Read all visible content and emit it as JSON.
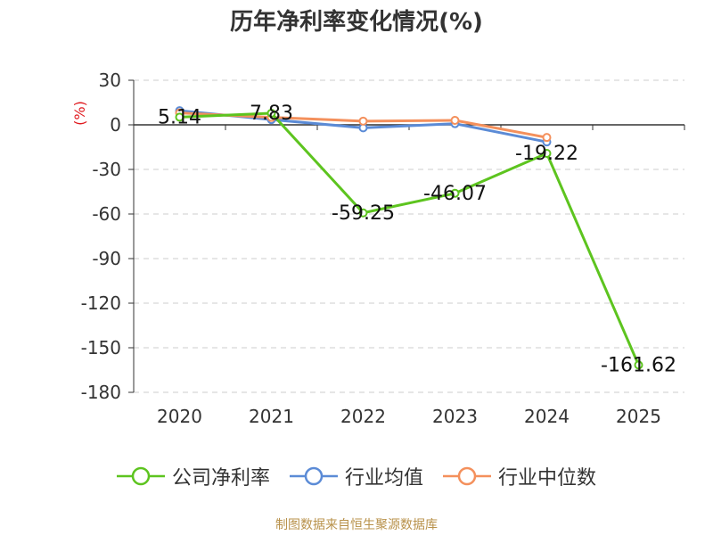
{
  "title": "历年净利率变化情况(%)",
  "source": "制图数据来自恒生聚源数据库",
  "colors": {
    "company": "#5dc41f",
    "industry_avg": "#5b8bd6",
    "industry_median": "#f4905c",
    "axis": "#333333",
    "grid": "#cccccc",
    "unit": "#e0191e"
  },
  "chart_data": {
    "type": "line",
    "title": "历年净利率变化情况(%)",
    "ylabel": "(%)",
    "xlabel": "",
    "categories": [
      "2020",
      "2021",
      "2022",
      "2023",
      "2024",
      "2025"
    ],
    "ylim": [
      -180,
      30
    ],
    "yticks": [
      30,
      0,
      -30,
      -60,
      -90,
      -120,
      -150,
      -180
    ],
    "grid": true,
    "legend_position": "bottom",
    "series": [
      {
        "key": "industry_avg",
        "name": "行业均值",
        "values": [
          9.5,
          3.5,
          -2.0,
          0.8,
          -11.5,
          null
        ],
        "labels": false
      },
      {
        "key": "industry_median",
        "name": "行业中位数",
        "values": [
          8.0,
          5.0,
          2.5,
          3.0,
          -8.5,
          null
        ],
        "labels": false
      },
      {
        "key": "company",
        "name": "公司净利率",
        "values": [
          5.14,
          7.83,
          -59.25,
          -46.07,
          -19.22,
          -161.62
        ],
        "data_labels": [
          "5.14",
          "7.83",
          "-59.25",
          "-46.07",
          "-19.22",
          "-161.62"
        ],
        "labels": true
      }
    ]
  },
  "legend": [
    {
      "key": "company",
      "label": "公司净利率"
    },
    {
      "key": "industry_avg",
      "label": "行业均值"
    },
    {
      "key": "industry_median",
      "label": "行业中位数"
    }
  ]
}
